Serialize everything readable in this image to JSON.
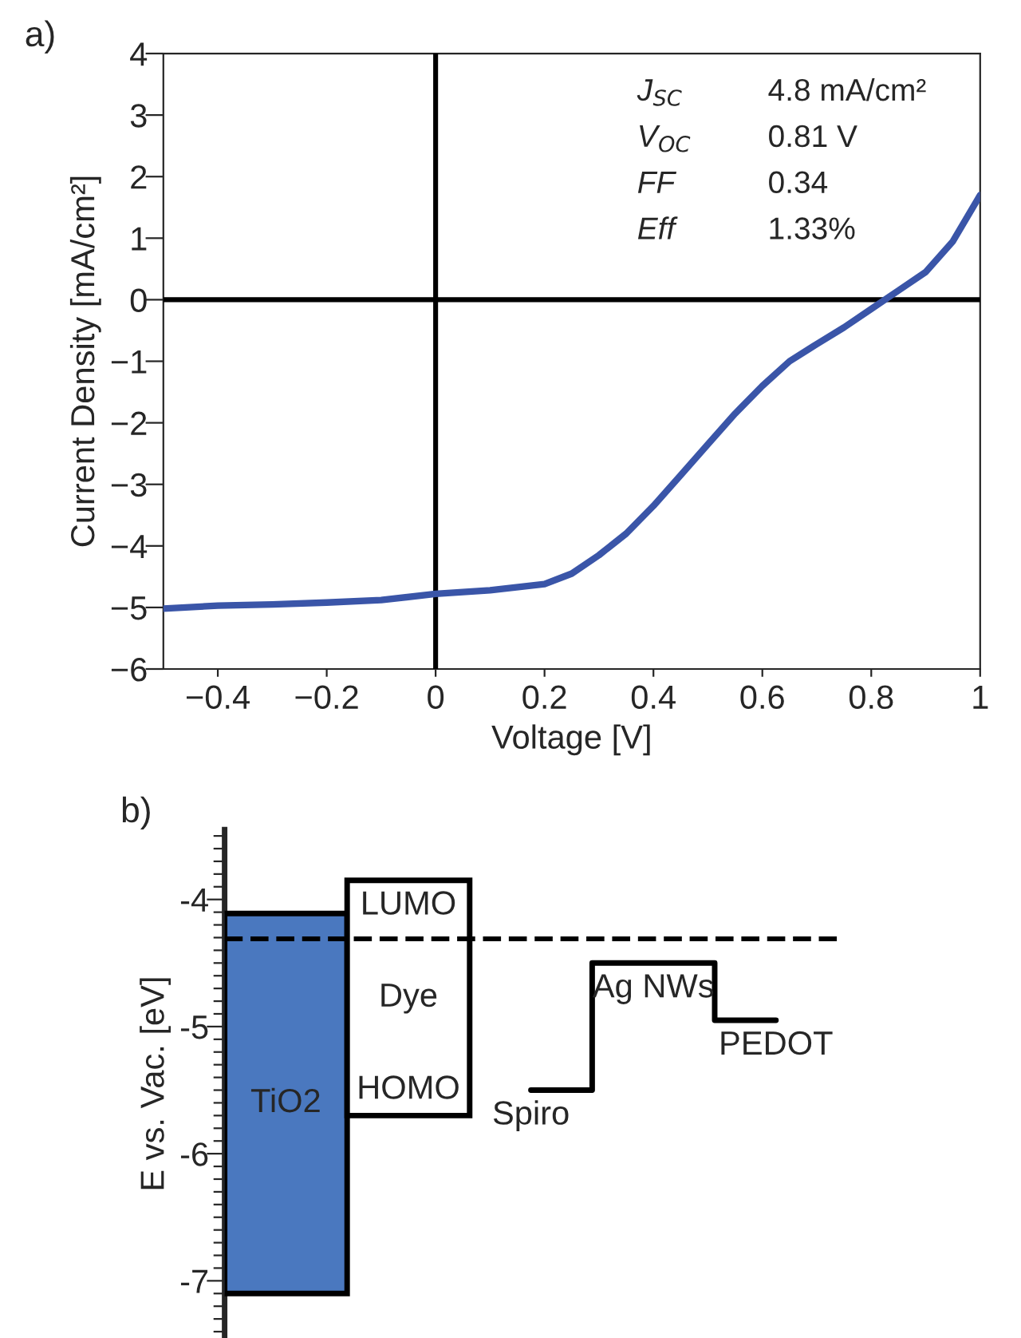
{
  "chart_data": [
    {
      "type": "line",
      "title": "a)",
      "xlabel": "Voltage [V]",
      "ylabel": "Current Density [mA/cm²]",
      "x": [
        -0.5,
        -0.4,
        -0.3,
        -0.2,
        -0.1,
        0,
        0.1,
        0.2,
        0.25,
        0.3,
        0.35,
        0.4,
        0.45,
        0.5,
        0.55,
        0.6,
        0.65,
        0.7,
        0.75,
        0.8,
        0.85,
        0.9,
        0.95,
        1.0
      ],
      "series": [
        {
          "color": "#3a55a8",
          "values": [
            -5.02,
            -4.97,
            -4.95,
            -4.92,
            -4.88,
            -4.78,
            -4.72,
            -4.62,
            -4.45,
            -4.15,
            -3.8,
            -3.35,
            -2.85,
            -2.35,
            -1.85,
            -1.4,
            -1.0,
            -0.72,
            -0.45,
            -0.15,
            0.15,
            0.45,
            0.95,
            1.7
          ]
        }
      ],
      "xlim": [
        -0.5,
        1
      ],
      "xticks": [
        {
          "value": -0.4,
          "label": "−0.4"
        },
        {
          "value": -0.2,
          "label": "−0.2"
        },
        0,
        0.2,
        0.4,
        0.6,
        0.8,
        1
      ],
      "ylim": [
        -6,
        4
      ],
      "yticks": [
        {
          "value": -6,
          "label": "−6"
        },
        {
          "value": -5,
          "label": "−5"
        },
        {
          "value": -4,
          "label": "−4"
        },
        {
          "value": -3,
          "label": "−3"
        },
        {
          "value": -2,
          "label": "−2"
        },
        {
          "value": -1,
          "label": "−1"
        },
        0,
        1,
        2,
        3,
        4
      ],
      "ref_lines": [
        {
          "axis": "x",
          "value": 0,
          "color": "#000000"
        },
        {
          "axis": "y",
          "value": 0,
          "color": "#000000"
        }
      ],
      "annotations": [
        "J$_{SC}$",
        "4.8 mA/cm²",
        "V$_{OC}$",
        "0.81 V",
        "FF",
        "0.34",
        "Eff",
        "1.33%"
      ],
      "grid": false,
      "legend": false,
      "line_style": "solid",
      "marker": "none"
    },
    {
      "type": "bar",
      "title": "b)",
      "ylabel": "E vs. Vac. [eV]",
      "categories": [
        "TiO2",
        "Dye",
        "Spiro",
        "Ag NWs",
        "PEDOT"
      ],
      "series": [
        {
          "type": "bar",
          "base": [
            -7.1,
            -5.7,
            null,
            null,
            null
          ],
          "values": [
            2.99,
            1.85,
            null,
            null,
            null
          ],
          "colors": [
            "#4a78bf",
            "#ffffff",
            null,
            null,
            null
          ]
        },
        {
          "type": "step",
          "color": "#000000",
          "values": [
            null,
            null,
            -5.5,
            -4.5,
            -4.95
          ]
        }
      ],
      "annotations": [
        "LUMO",
        "HOMO"
      ],
      "ref_lines": [
        {
          "axis": "y",
          "value": -4.31,
          "color": "#000000",
          "line_style": "dashed"
        }
      ],
      "ylim": [
        -7.45,
        -3.45
      ],
      "yticks": [
        {
          "value": -3.5,
          "label": null
        },
        {
          "value": -3.6,
          "label": null
        },
        {
          "value": -3.7,
          "label": null
        },
        {
          "value": -3.8,
          "label": null
        },
        {
          "value": -3.9,
          "label": null
        },
        {
          "value": -4,
          "label": "-4"
        },
        {
          "value": -4.1,
          "label": null
        },
        {
          "value": -4.2,
          "label": null
        },
        {
          "value": -4.3,
          "label": null
        },
        {
          "value": -4.4,
          "label": null
        },
        {
          "value": -4.5,
          "label": null
        },
        {
          "value": -4.6,
          "label": null
        },
        {
          "value": -4.7,
          "label": null
        },
        {
          "value": -4.8,
          "label": null
        },
        {
          "value": -4.9,
          "label": null
        },
        {
          "value": -5,
          "label": "-5"
        },
        {
          "value": -5.1,
          "label": null
        },
        {
          "value": -5.2,
          "label": null
        },
        {
          "value": -5.3,
          "label": null
        },
        {
          "value": -5.4,
          "label": null
        },
        {
          "value": -5.5,
          "label": null
        },
        {
          "value": -5.6,
          "label": null
        },
        {
          "value": -5.7,
          "label": null
        },
        {
          "value": -5.8,
          "label": null
        },
        {
          "value": -5.9,
          "label": null
        },
        {
          "value": -6,
          "label": "-6"
        },
        {
          "value": -6.1,
          "label": null
        },
        {
          "value": -6.2,
          "label": null
        },
        {
          "value": -6.3,
          "label": null
        },
        {
          "value": -6.4,
          "label": null
        },
        {
          "value": -6.5,
          "label": null
        },
        {
          "value": -6.6,
          "label": null
        },
        {
          "value": -6.7,
          "label": null
        },
        {
          "value": -6.8,
          "label": null
        },
        {
          "value": -6.9,
          "label": null
        },
        {
          "value": -7,
          "label": "-7"
        },
        {
          "value": -7.1,
          "label": null
        },
        {
          "value": -7.2,
          "label": null
        },
        {
          "value": -7.3,
          "label": null
        },
        {
          "value": -7.4,
          "label": null
        }
      ],
      "tick_labels": "y",
      "grid": false
    }
  ]
}
